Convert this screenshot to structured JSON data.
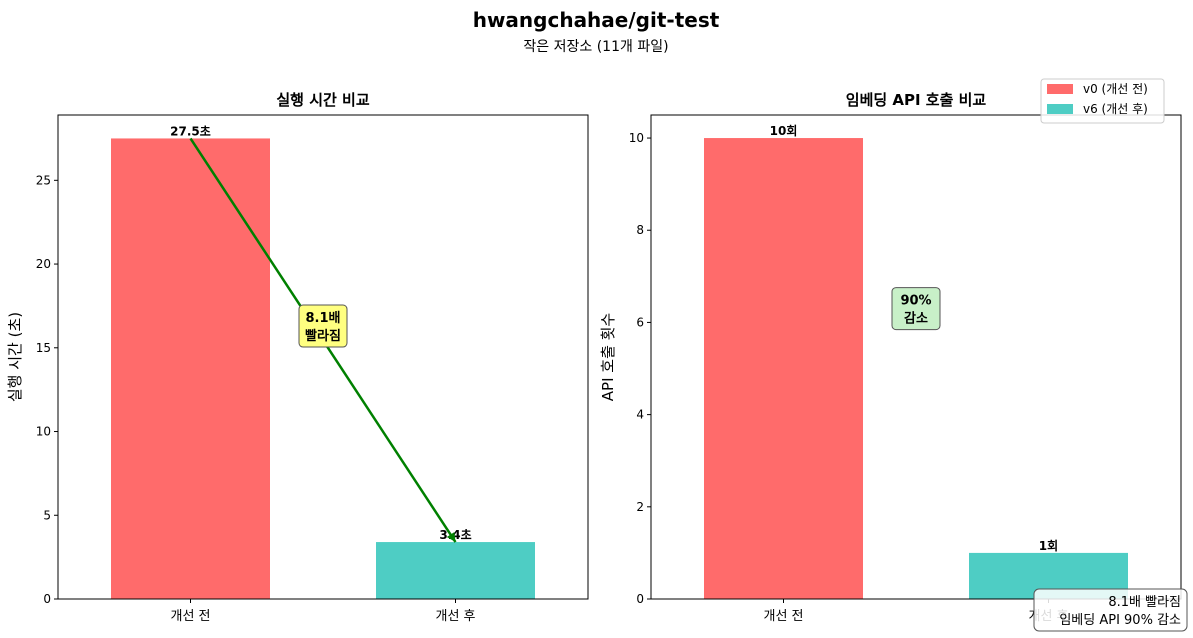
{
  "title": "hwangchahae/git-test",
  "subtitle": "작은 저장소 (11개 파일)",
  "legend": [
    {
      "label": "v0 (개선 전)",
      "color": "#ff6b6b"
    },
    {
      "label": "v6 (개선 후)",
      "color": "#4ecdc4"
    }
  ],
  "summary_box": {
    "line1": "8.1배 빨라짐",
    "line2": "임베딩 API 90% 감소"
  },
  "chart_data": [
    {
      "type": "bar",
      "title": "실행 시간 비교",
      "xlabel": "",
      "ylabel": "실행 시간 (초)",
      "categories": [
        "개선 전",
        "개선 후"
      ],
      "values": [
        27.5,
        3.4
      ],
      "data_labels": [
        "27.5초",
        "3.4초"
      ],
      "colors": [
        "#ff6b6b",
        "#4ecdc4"
      ],
      "ylim": [
        0,
        28.9
      ],
      "yticks": [
        0,
        5,
        10,
        15,
        20,
        25
      ],
      "arrow": {
        "from": [
          0,
          27.5
        ],
        "to": [
          1,
          3.4
        ],
        "color": "#008000"
      },
      "annotation": {
        "lines": [
          "8.1배",
          "빨라짐"
        ],
        "x": 0.5,
        "y": 16.3,
        "bg": "#ffff80"
      }
    },
    {
      "type": "bar",
      "title": "임베딩 API 호출 비교",
      "xlabel": "",
      "ylabel": "API 호출 횟수",
      "categories": [
        "개선 전",
        "개선 후"
      ],
      "values": [
        10,
        1
      ],
      "data_labels": [
        "10회",
        "1회"
      ],
      "colors": [
        "#ff6b6b",
        "#4ecdc4"
      ],
      "ylim": [
        0,
        10.5
      ],
      "yticks": [
        0,
        2,
        4,
        6,
        8,
        10
      ],
      "annotation": {
        "lines": [
          "90%",
          "감소"
        ],
        "x": 0.5,
        "y": 6.3,
        "bg": "#c8f0c8"
      }
    }
  ]
}
